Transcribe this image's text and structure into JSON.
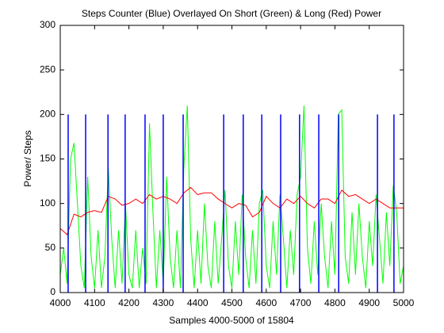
{
  "chart_data": {
    "type": "line",
    "title": "Steps Counter (Blue) Overlayed On Short (Green) & Long (Red) Power",
    "xlabel": "Samples 4000-5000 of 15804",
    "ylabel": "Power/ Steps",
    "xlim": [
      4000,
      5000
    ],
    "ylim": [
      0,
      300
    ],
    "xticks": [
      4000,
      4100,
      4200,
      4300,
      4400,
      4500,
      4600,
      4700,
      4800,
      4900,
      5000
    ],
    "yticks": [
      0,
      50,
      100,
      150,
      200,
      250,
      300
    ],
    "series": [
      {
        "color": "#00ff00",
        "style": "line",
        "x": [
          4000,
          4010,
          4020,
          4030,
          4040,
          4050,
          4060,
          4070,
          4080,
          4090,
          4100,
          4110,
          4120,
          4130,
          4140,
          4150,
          4160,
          4170,
          4180,
          4190,
          4200,
          4210,
          4220,
          4230,
          4240,
          4250,
          4260,
          4270,
          4280,
          4290,
          4300,
          4310,
          4320,
          4330,
          4340,
          4350,
          4360,
          4370,
          4380,
          4390,
          4400,
          4410,
          4420,
          4430,
          4440,
          4450,
          4460,
          4470,
          4480,
          4490,
          4500,
          4510,
          4520,
          4530,
          4540,
          4550,
          4560,
          4570,
          4580,
          4590,
          4600,
          4610,
          4620,
          4630,
          4640,
          4650,
          4660,
          4670,
          4680,
          4690,
          4700,
          4710,
          4720,
          4730,
          4740,
          4750,
          4760,
          4770,
          4780,
          4790,
          4800,
          4810,
          4820,
          4830,
          4840,
          4850,
          4860,
          4870,
          4880,
          4890,
          4900,
          4910,
          4920,
          4930,
          4940,
          4950,
          4960,
          4970,
          4980,
          4990,
          5000
        ],
        "values": [
          20,
          50,
          10,
          150,
          168,
          100,
          30,
          5,
          130,
          40,
          5,
          70,
          5,
          40,
          140,
          60,
          5,
          70,
          10,
          100,
          20,
          5,
          70,
          5,
          50,
          10,
          190,
          90,
          5,
          70,
          10,
          130,
          40,
          5,
          70,
          5,
          140,
          210,
          60,
          5,
          70,
          10,
          100,
          30,
          5,
          80,
          10,
          60,
          115,
          30,
          5,
          80,
          20,
          110,
          40,
          5,
          70,
          10,
          100,
          115,
          30,
          5,
          80,
          20,
          110,
          60,
          5,
          70,
          20,
          110,
          130,
          210,
          50,
          10,
          80,
          20,
          100,
          40,
          5,
          80,
          20,
          200,
          205,
          40,
          10,
          90,
          20,
          100,
          40,
          5,
          80,
          30,
          110,
          60,
          10,
          90,
          30,
          120,
          90,
          10,
          30
        ]
      },
      {
        "color": "#ff0000",
        "style": "line",
        "x": [
          4000,
          4020,
          4040,
          4060,
          4080,
          4100,
          4120,
          4140,
          4160,
          4180,
          4200,
          4220,
          4240,
          4260,
          4280,
          4300,
          4320,
          4340,
          4360,
          4380,
          4400,
          4420,
          4440,
          4460,
          4480,
          4500,
          4520,
          4540,
          4560,
          4580,
          4600,
          4620,
          4640,
          4660,
          4680,
          4700,
          4720,
          4740,
          4760,
          4780,
          4800,
          4820,
          4840,
          4860,
          4880,
          4900,
          4920,
          4940,
          4960,
          4980,
          5000
        ],
        "values": [
          72,
          65,
          88,
          85,
          90,
          92,
          90,
          108,
          105,
          98,
          100,
          105,
          100,
          110,
          105,
          108,
          105,
          100,
          112,
          118,
          110,
          112,
          112,
          105,
          100,
          95,
          100,
          98,
          85,
          90,
          108,
          100,
          95,
          105,
          100,
          108,
          100,
          95,
          105,
          105,
          100,
          115,
          108,
          110,
          105,
          100,
          105,
          100,
          95,
          95,
          95
        ]
      },
      {
        "color": "#0000ff",
        "style": "stem",
        "x": [
          4023,
          4074,
          4139,
          4189,
          4247,
          4300,
          4358,
          4476,
          4533,
          4587,
          4642,
          4697,
          4753,
          4811,
          4924,
          4972
        ],
        "values": [
          200,
          200,
          200,
          200,
          200,
          200,
          200,
          200,
          200,
          200,
          200,
          200,
          200,
          200,
          200,
          200
        ]
      }
    ]
  }
}
